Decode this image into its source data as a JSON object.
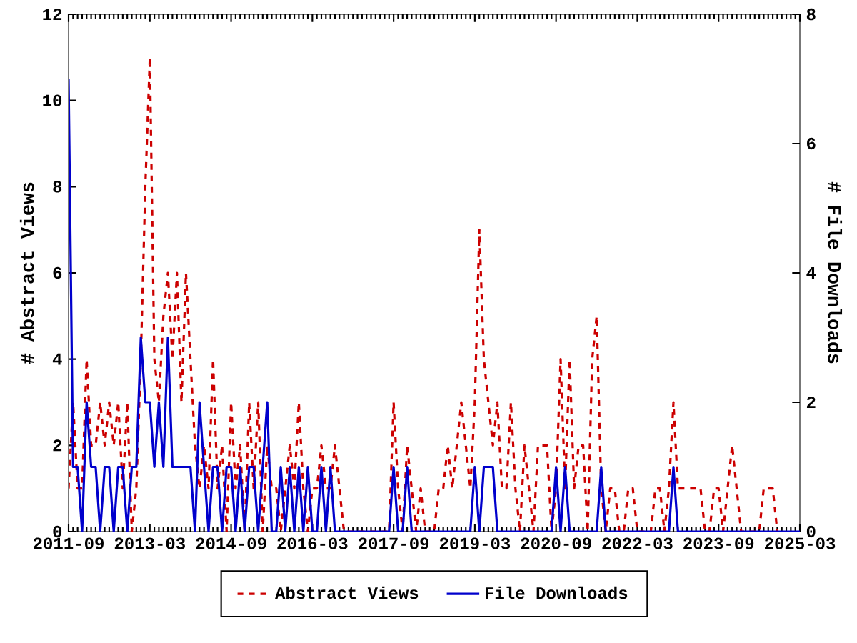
{
  "chart_data": {
    "type": "line",
    "x": [
      "2011-09",
      "2011-10",
      "2011-11",
      "2011-12",
      "2012-01",
      "2012-02",
      "2012-03",
      "2012-04",
      "2012-05",
      "2012-06",
      "2012-07",
      "2012-08",
      "2012-09",
      "2012-10",
      "2012-11",
      "2012-12",
      "2013-01",
      "2013-02",
      "2013-03",
      "2013-04",
      "2013-05",
      "2013-06",
      "2013-07",
      "2013-08",
      "2013-09",
      "2013-10",
      "2013-11",
      "2013-12",
      "2014-01",
      "2014-02",
      "2014-03",
      "2014-04",
      "2014-05",
      "2014-06",
      "2014-07",
      "2014-08",
      "2014-09",
      "2014-10",
      "2014-11",
      "2014-12",
      "2015-01",
      "2015-02",
      "2015-03",
      "2015-04",
      "2015-05",
      "2015-06",
      "2015-07",
      "2015-08",
      "2015-09",
      "2015-10",
      "2015-11",
      "2015-12",
      "2016-01",
      "2016-02",
      "2016-03",
      "2016-04",
      "2016-05",
      "2016-06",
      "2016-07",
      "2016-08",
      "2016-09",
      "2016-10",
      "2016-11",
      "2016-12",
      "2017-01",
      "2017-02",
      "2017-03",
      "2017-04",
      "2017-05",
      "2017-06",
      "2017-07",
      "2017-08",
      "2017-09",
      "2017-10",
      "2017-11",
      "2017-12",
      "2018-01",
      "2018-02",
      "2018-03",
      "2018-04",
      "2018-05",
      "2018-06",
      "2018-07",
      "2018-08",
      "2018-09",
      "2018-10",
      "2018-11",
      "2018-12",
      "2019-01",
      "2019-02",
      "2019-03",
      "2019-04",
      "2019-05",
      "2019-06",
      "2019-07",
      "2019-08",
      "2019-09",
      "2019-10",
      "2019-11",
      "2019-12",
      "2020-01",
      "2020-02",
      "2020-03",
      "2020-04",
      "2020-05",
      "2020-06",
      "2020-07",
      "2020-08",
      "2020-09",
      "2020-10",
      "2020-11",
      "2020-12",
      "2021-01",
      "2021-02",
      "2021-03",
      "2021-04",
      "2021-05",
      "2021-06",
      "2021-07",
      "2021-08",
      "2021-09",
      "2021-10",
      "2021-11",
      "2021-12",
      "2022-01",
      "2022-02",
      "2022-03",
      "2022-04",
      "2022-05",
      "2022-06",
      "2022-07",
      "2022-08",
      "2022-09",
      "2022-10",
      "2022-11",
      "2022-12",
      "2023-01",
      "2023-02",
      "2023-03",
      "2023-04",
      "2023-05",
      "2023-06",
      "2023-07",
      "2023-08",
      "2023-09",
      "2023-10",
      "2023-11",
      "2023-12",
      "2024-01",
      "2024-02",
      "2024-03",
      "2024-04",
      "2024-05",
      "2024-06",
      "2024-07",
      "2024-08",
      "2024-09",
      "2024-10",
      "2024-11",
      "2024-12",
      "2025-01",
      "2025-02",
      "2025-03"
    ],
    "series": [
      {
        "name": "Abstract Views",
        "color": "#cc0000",
        "line_style": "dashed",
        "values": [
          1,
          3,
          1,
          1,
          4,
          2,
          2,
          3,
          2,
          3,
          2,
          3,
          1,
          3,
          0,
          1,
          4,
          8,
          11,
          4,
          3,
          5,
          6,
          4,
          6,
          3,
          6,
          4,
          2,
          1,
          2,
          1,
          4,
          1,
          2,
          0,
          3,
          1,
          2,
          0,
          3,
          1,
          3,
          0,
          2,
          1,
          1,
          0,
          1,
          2,
          1,
          3,
          1,
          0,
          1,
          1,
          2,
          1,
          1,
          2,
          1,
          0,
          0,
          0,
          0,
          0,
          0,
          0,
          0,
          0,
          0,
          0,
          3,
          1,
          0,
          2,
          1,
          0,
          1,
          0,
          0,
          0,
          1,
          1,
          2,
          1,
          2,
          3,
          2,
          1,
          3,
          7,
          4,
          3,
          2,
          3,
          1,
          1,
          3,
          1,
          0,
          2,
          1,
          0,
          2,
          2,
          2,
          0,
          1,
          4,
          1,
          4,
          1,
          2,
          2,
          0,
          4,
          5,
          1,
          0,
          1,
          1,
          0,
          0,
          1,
          1,
          0,
          0,
          0,
          0,
          1,
          1,
          0,
          1,
          3,
          1,
          1,
          1,
          1,
          1,
          1,
          0,
          0,
          1,
          1,
          0,
          1,
          2,
          1,
          0,
          0,
          0,
          0,
          0,
          1,
          1,
          1,
          0,
          null,
          null,
          null,
          null,
          null
        ]
      },
      {
        "name": "File Downloads",
        "color": "#0000cc",
        "line_style": "solid",
        "axis": "y2",
        "values": [
          7,
          1,
          1,
          0,
          2,
          1,
          1,
          0,
          1,
          1,
          0,
          1,
          1,
          0,
          1,
          1,
          3,
          2,
          2,
          1,
          2,
          1,
          3,
          1,
          1,
          1,
          1,
          1,
          0,
          2,
          1,
          0,
          1,
          1,
          0,
          1,
          1,
          0,
          1,
          0,
          1,
          1,
          0,
          1,
          2,
          0,
          0,
          1,
          0,
          1,
          0,
          1,
          0,
          1,
          0,
          0,
          1,
          0,
          1,
          0,
          0,
          0,
          0,
          0,
          0,
          0,
          0,
          0,
          0,
          0,
          0,
          0,
          1,
          0,
          0,
          1,
          0,
          0,
          0,
          0,
          0,
          0,
          0,
          0,
          0,
          0,
          0,
          0,
          0,
          0,
          1,
          0,
          1,
          1,
          1,
          0,
          0,
          0,
          0,
          0,
          0,
          0,
          0,
          0,
          0,
          0,
          0,
          0,
          1,
          0,
          1,
          0,
          0,
          0,
          0,
          0,
          0,
          0,
          1,
          0,
          0,
          0,
          0,
          0,
          0,
          0,
          0,
          0,
          0,
          0,
          0,
          0,
          0,
          0,
          1,
          0,
          0,
          0,
          0,
          0,
          0,
          0,
          0,
          0,
          0,
          0,
          0,
          0,
          0,
          0,
          0,
          0,
          0,
          0,
          0,
          0,
          0,
          0,
          0,
          0,
          0,
          0,
          0
        ]
      }
    ],
    "xlim": [
      "2011-09",
      "2025-03"
    ],
    "xticks": [
      "2011-09",
      "2013-03",
      "2014-09",
      "2016-03",
      "2017-09",
      "2019-03",
      "2020-09",
      "2022-03",
      "2023-09",
      "2025-03"
    ],
    "ylim": [
      0,
      12
    ],
    "yticks": [
      0,
      2,
      4,
      6,
      8,
      10,
      12
    ],
    "y2lim": [
      0,
      8
    ],
    "y2ticks": [
      0,
      2,
      4,
      6,
      8
    ],
    "ylabel": "# Abstract Views",
    "y2label": "# File Downloads",
    "legend": "bottom"
  }
}
